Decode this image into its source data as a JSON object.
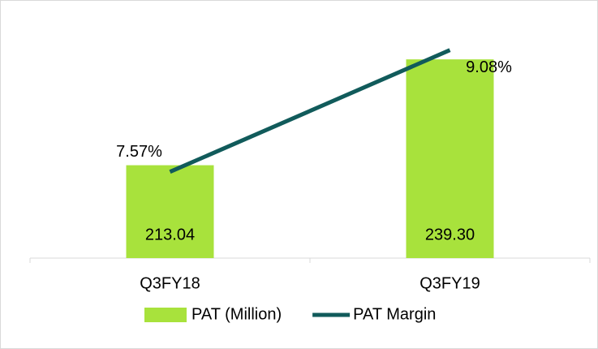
{
  "chart_data": {
    "type": "bar",
    "categories": [
      "Q3FY18",
      "Q3FY19"
    ],
    "series": [
      {
        "name": "PAT (Million)",
        "type": "bar",
        "color": "#a8e23c",
        "values": [
          213.04,
          239.3
        ],
        "value_labels": [
          "213.04",
          "239.30"
        ]
      },
      {
        "name": "PAT Margin",
        "type": "line",
        "axis": "y2",
        "color": "#115b5b",
        "values": [
          7.57,
          9.08
        ],
        "value_labels": [
          "7.57%",
          "9.08%"
        ]
      }
    ],
    "ylim": [
      190,
      250
    ],
    "y2lim": [
      6.5,
      9.5
    ],
    "legend": "bottom"
  }
}
